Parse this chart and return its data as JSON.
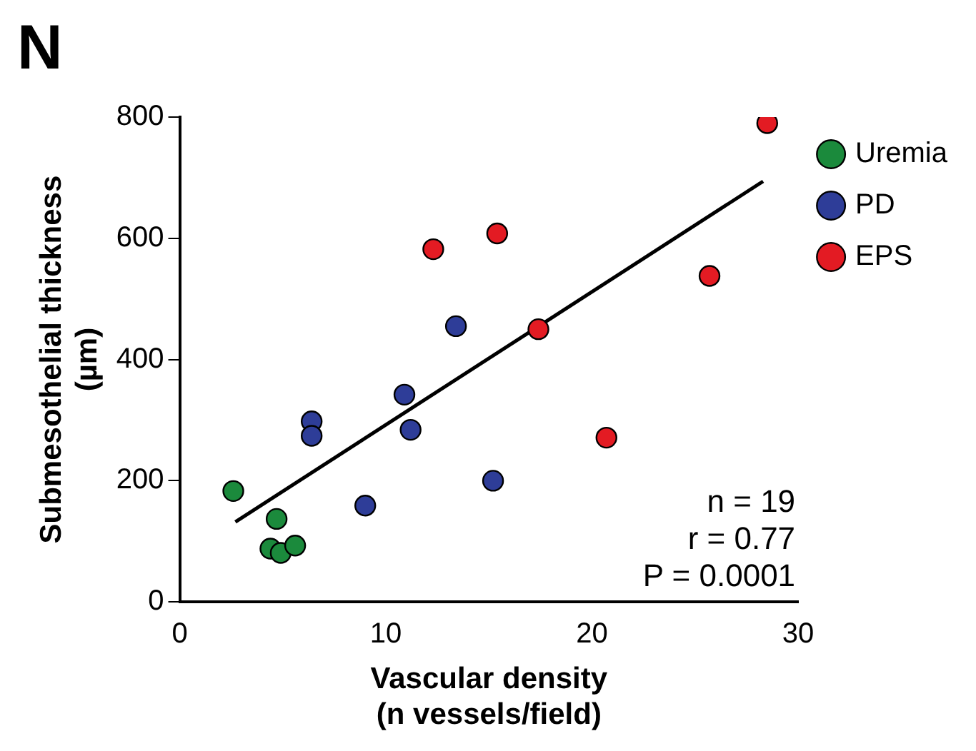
{
  "chart_data": {
    "type": "scatter",
    "title": "N",
    "xlabel": "Vascular density\n(n vessels/field)",
    "ylabel": "Submesothelial thickness\n(µm)",
    "xlim": [
      0,
      30
    ],
    "xticks": [
      0,
      10,
      20,
      30
    ],
    "ylim": [
      0,
      800
    ],
    "yticks": [
      0,
      200,
      400,
      600,
      800
    ],
    "grid": false,
    "legend": "right",
    "marker": "circle",
    "series": [
      {
        "name": "Uremia",
        "color": "#1b8a3c",
        "x": [
          2.6,
          4.7,
          4.4,
          4.9,
          5.6
        ],
        "values": [
          183,
          137,
          88,
          81,
          93
        ]
      },
      {
        "name": "PD",
        "color": "#2e3d98",
        "x": [
          6.4,
          6.4,
          9.0,
          10.9,
          11.2,
          13.4,
          15.2
        ],
        "values": [
          298,
          274,
          159,
          342,
          284,
          455,
          200
        ]
      },
      {
        "name": "EPS",
        "color": "#e31b23",
        "x": [
          12.3,
          15.2,
          15.4,
          17.4,
          20.7,
          25.7,
          28.5
        ],
        "values": [
          582,
          null,
          608,
          450,
          271,
          538,
          790
        ]
      },
      {
        "type": "line",
        "marker": "none",
        "color": "#000000",
        "x": [
          2.7,
          28.3
        ],
        "values": [
          132,
          694
        ]
      }
    ],
    "annotations": [
      "n = 19",
      "r = 0.77",
      "P = 0.0001"
    ]
  }
}
